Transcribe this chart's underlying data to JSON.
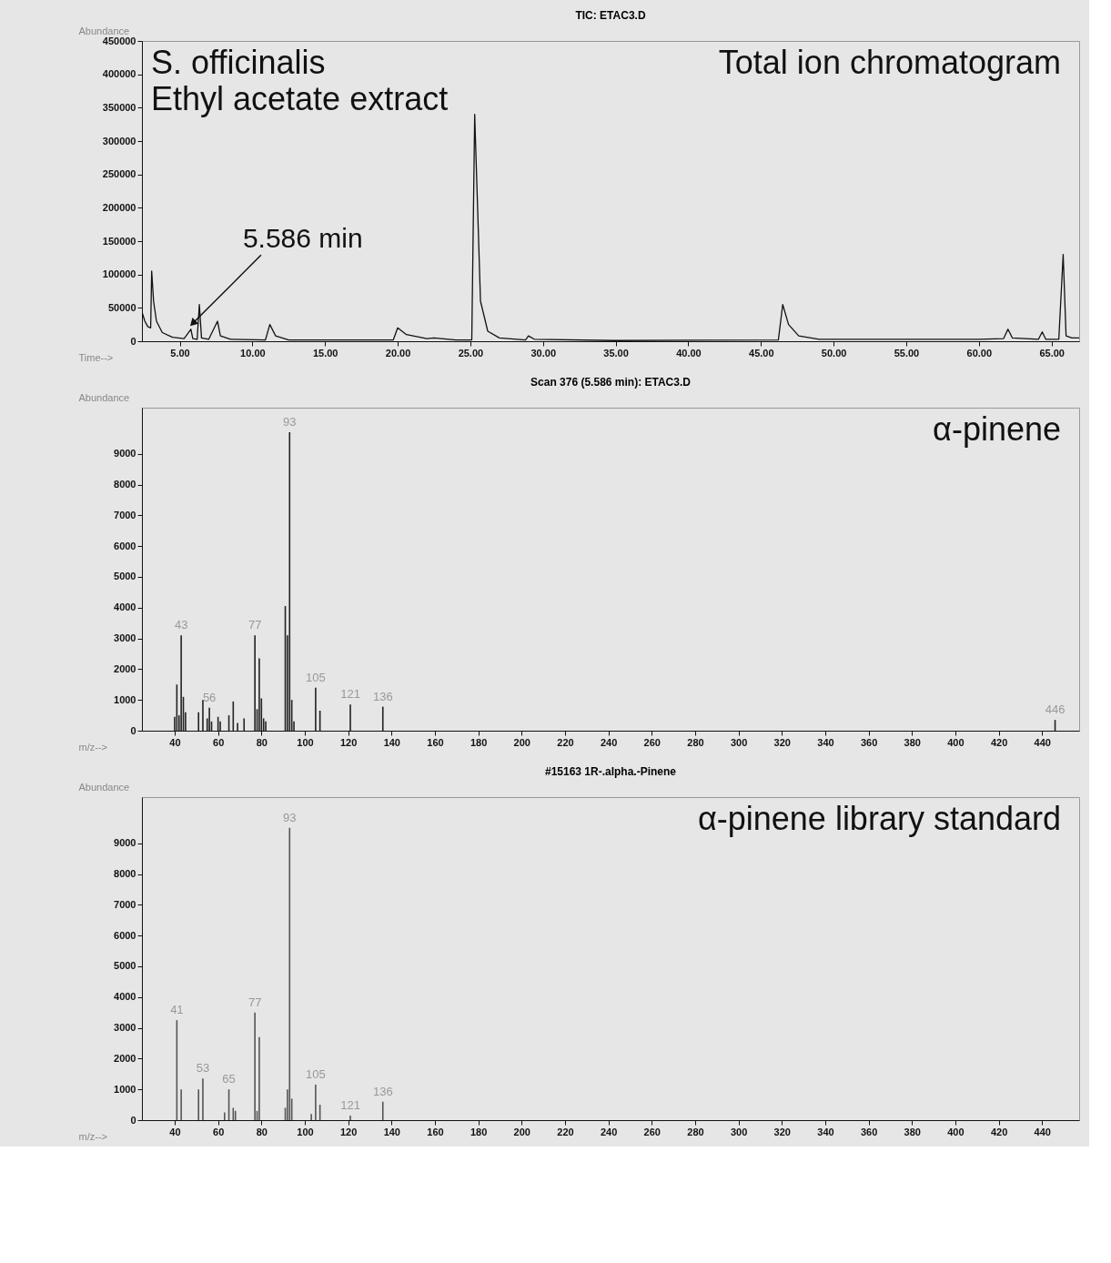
{
  "chart_data": [
    {
      "type": "line",
      "title": "TIC: ETAC3.D",
      "xlabel": "Time-->",
      "ylabel": "Abundance",
      "annotations": [
        "S. officinalis",
        "Ethyl acetate extract",
        "Total ion chromatogram",
        {
          "text": "5.586 min",
          "x": 5.586,
          "y": 20000
        }
      ],
      "x": [
        2.4,
        2.6,
        2.8,
        3.0,
        3.07,
        3.2,
        3.4,
        3.8,
        4.5,
        5.3,
        5.77,
        5.9,
        6.2,
        6.35,
        6.5,
        7.0,
        7.6,
        7.8,
        8.5,
        10.9,
        11.2,
        11.6,
        12.5,
        19.7,
        20.0,
        20.6,
        22.0,
        22.5,
        24.0,
        25.1,
        25.3,
        25.5,
        25.7,
        26.2,
        27.0,
        28.8,
        29.0,
        29.4,
        35.0,
        46.2,
        46.5,
        46.9,
        47.6,
        49.0,
        55.0,
        60.0,
        61.7,
        62.0,
        62.3,
        64.1,
        64.36,
        64.6,
        65.5,
        65.8,
        66.0,
        66.4,
        66.9
      ],
      "series": [
        {
          "color": "#111111",
          "values": [
            44000,
            30000,
            22000,
            20000,
            105000,
            60000,
            30000,
            13000,
            6000,
            4000,
            18000,
            4000,
            3000,
            55000,
            5000,
            3000,
            30000,
            8000,
            3000,
            2000,
            25000,
            8000,
            2000,
            2000,
            20000,
            10000,
            4000,
            5000,
            2000,
            2000,
            340000,
            200000,
            60000,
            15000,
            5000,
            2000,
            8000,
            3000,
            1000,
            2000,
            55000,
            25000,
            8000,
            3000,
            3000,
            3000,
            4000,
            18000,
            5000,
            3000,
            14000,
            3000,
            3000,
            130000,
            8000,
            5000,
            5000
          ]
        }
      ],
      "xlim": [
        2.4,
        66.9
      ],
      "xticks": [
        {
          "value": 5,
          "label": "5.00"
        },
        {
          "value": 10,
          "label": "10.00"
        },
        {
          "value": 15,
          "label": "15.00"
        },
        {
          "value": 20,
          "label": "20.00"
        },
        {
          "value": 25,
          "label": "25.00"
        },
        {
          "value": 30,
          "label": "30.00"
        },
        {
          "value": 35,
          "label": "35.00"
        },
        {
          "value": 40,
          "label": "40.00"
        },
        {
          "value": 45,
          "label": "45.00"
        },
        {
          "value": 50,
          "label": "50.00"
        },
        {
          "value": 55,
          "label": "55.00"
        },
        {
          "value": 60,
          "label": "60.00"
        },
        {
          "value": 65,
          "label": "65.00"
        }
      ],
      "ylim": [
        0,
        450000
      ],
      "yticks": [
        0,
        50000,
        100000,
        150000,
        200000,
        250000,
        300000,
        350000,
        400000,
        450000
      ],
      "grid": false
    },
    {
      "type": "bar",
      "title": "Scan 376 (5.586 min): ETAC3.D",
      "xlabel": "m/z-->",
      "ylabel": "Abundance",
      "annotations": [
        "α-pinene",
        {
          "text": "43",
          "x": 43,
          "y": 3100
        },
        {
          "text": "56",
          "x": 56,
          "y": 750
        },
        {
          "text": "77",
          "x": 77,
          "y": 3100
        },
        {
          "text": "93",
          "x": 93,
          "y": 9700
        },
        {
          "text": "105",
          "x": 105,
          "y": 1400
        },
        {
          "text": "121",
          "x": 121,
          "y": 850
        },
        {
          "text": "136",
          "x": 136,
          "y": 780
        },
        {
          "text": "446",
          "x": 446,
          "y": 350
        }
      ],
      "x": [
        40,
        41,
        42,
        43,
        44,
        45,
        51,
        53,
        55,
        56,
        57,
        60,
        61,
        65,
        67,
        69,
        72,
        77,
        78,
        79,
        80,
        81,
        82,
        91,
        92,
        93,
        94,
        95,
        105,
        107,
        121,
        136,
        446
      ],
      "series": [
        {
          "color": "#222222",
          "values": [
            450,
            1500,
            500,
            3100,
            1100,
            600,
            600,
            1000,
            400,
            750,
            300,
            450,
            300,
            500,
            950,
            250,
            400,
            3100,
            700,
            2350,
            1050,
            400,
            300,
            4050,
            3100,
            9700,
            1000,
            300,
            1400,
            650,
            850,
            780,
            350
          ]
        }
      ],
      "xlim": [
        27,
        455
      ],
      "xticks": [
        40,
        60,
        80,
        100,
        120,
        140,
        160,
        180,
        200,
        220,
        240,
        260,
        280,
        300,
        320,
        340,
        360,
        380,
        400,
        420,
        440
      ],
      "ylim": [
        0,
        10500
      ],
      "yticks": [
        0,
        1000,
        2000,
        3000,
        4000,
        5000,
        6000,
        7000,
        8000,
        9000
      ],
      "grid": false
    },
    {
      "type": "bar",
      "title": "#15163  1R-.alpha.-Pinene",
      "xlabel": "m/z-->",
      "ylabel": "Abundance",
      "annotations": [
        "α-pinene library standard",
        {
          "text": "41",
          "x": 41,
          "y": 3250
        },
        {
          "text": "53",
          "x": 53,
          "y": 1350
        },
        {
          "text": "65",
          "x": 65,
          "y": 1000
        },
        {
          "text": "77",
          "x": 77,
          "y": 3500
        },
        {
          "text": "93",
          "x": 93,
          "y": 9500
        },
        {
          "text": "105",
          "x": 105,
          "y": 1150
        },
        {
          "text": "121",
          "x": 121,
          "y": 150
        },
        {
          "text": "136",
          "x": 136,
          "y": 600
        }
      ],
      "x": [
        41,
        43,
        51,
        53,
        63,
        65,
        67,
        68,
        77,
        78,
        79,
        91,
        92,
        93,
        94,
        103,
        105,
        107,
        121,
        136
      ],
      "series": [
        {
          "color": "#555555",
          "values": [
            3250,
            1000,
            1000,
            1350,
            250,
            1000,
            400,
            300,
            3500,
            300,
            2700,
            400,
            1000,
            9500,
            700,
            200,
            1150,
            500,
            150,
            600
          ]
        }
      ],
      "xlim": [
        27,
        455
      ],
      "xticks": [
        40,
        60,
        80,
        100,
        120,
        140,
        160,
        180,
        200,
        220,
        240,
        260,
        280,
        300,
        320,
        340,
        360,
        380,
        400,
        420,
        440
      ],
      "ylim": [
        0,
        10500
      ],
      "yticks": [
        0,
        1000,
        2000,
        3000,
        4000,
        5000,
        6000,
        7000,
        8000,
        9000
      ],
      "grid": false
    }
  ]
}
